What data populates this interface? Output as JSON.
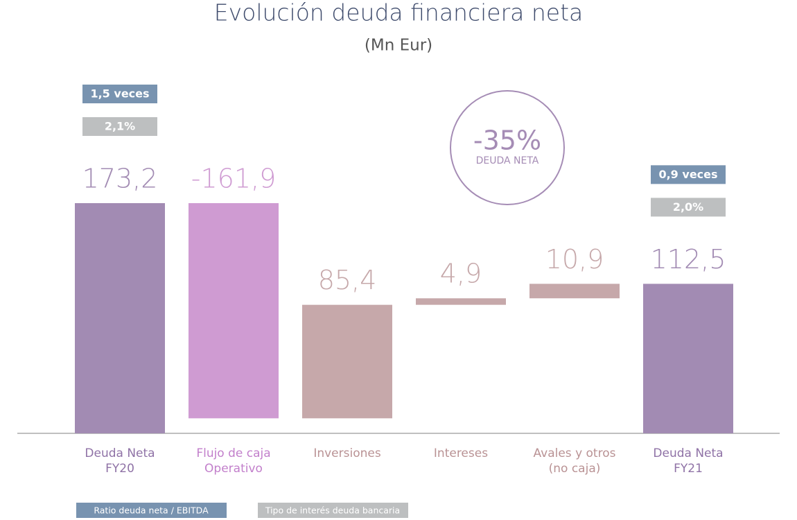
{
  "chart_data": {
    "type": "waterfall",
    "title": "Evolución deuda financiera neta",
    "subtitle": "(Mn Eur)",
    "categories": [
      "Deuda Neta\nFY20",
      "Flujo de caja\nOperativo",
      "Inversiones",
      "Intereses",
      "Avales y otros\n(no caja)",
      "Deuda Neta\nFY21"
    ],
    "values": [
      173.2,
      -161.9,
      85.4,
      4.9,
      10.9,
      112.5
    ],
    "value_labels": [
      "173,2",
      "-161,9",
      "85,4",
      "4,9",
      "10,9",
      "112,5"
    ],
    "measures": [
      "total",
      "relative",
      "relative",
      "relative",
      "relative",
      "total"
    ],
    "colors": [
      "#a28bb3",
      "#cf9bd2",
      "#c6a8aa",
      "#c6a8aa",
      "#c6a8aa",
      "#a28bb3"
    ],
    "label_colors": [
      "#8f72a6",
      "#c27fcb",
      "#b99294",
      "#b99294",
      "#b99294",
      "#8f72a6"
    ],
    "badges": [
      {
        "ratio": "1,5 veces",
        "interest": "2,1%"
      },
      null,
      null,
      null,
      null,
      {
        "ratio": "0,9 veces",
        "interest": "2,0%"
      }
    ],
    "highlight": {
      "value": "-35%",
      "label": "DEUDA NETA"
    },
    "legend": [
      {
        "name": "Ratio deuda neta / EBITDA",
        "color": "#7893b0"
      },
      {
        "name": "Tipo de interés deuda bancaria",
        "color": "#bdbfc0"
      }
    ]
  }
}
